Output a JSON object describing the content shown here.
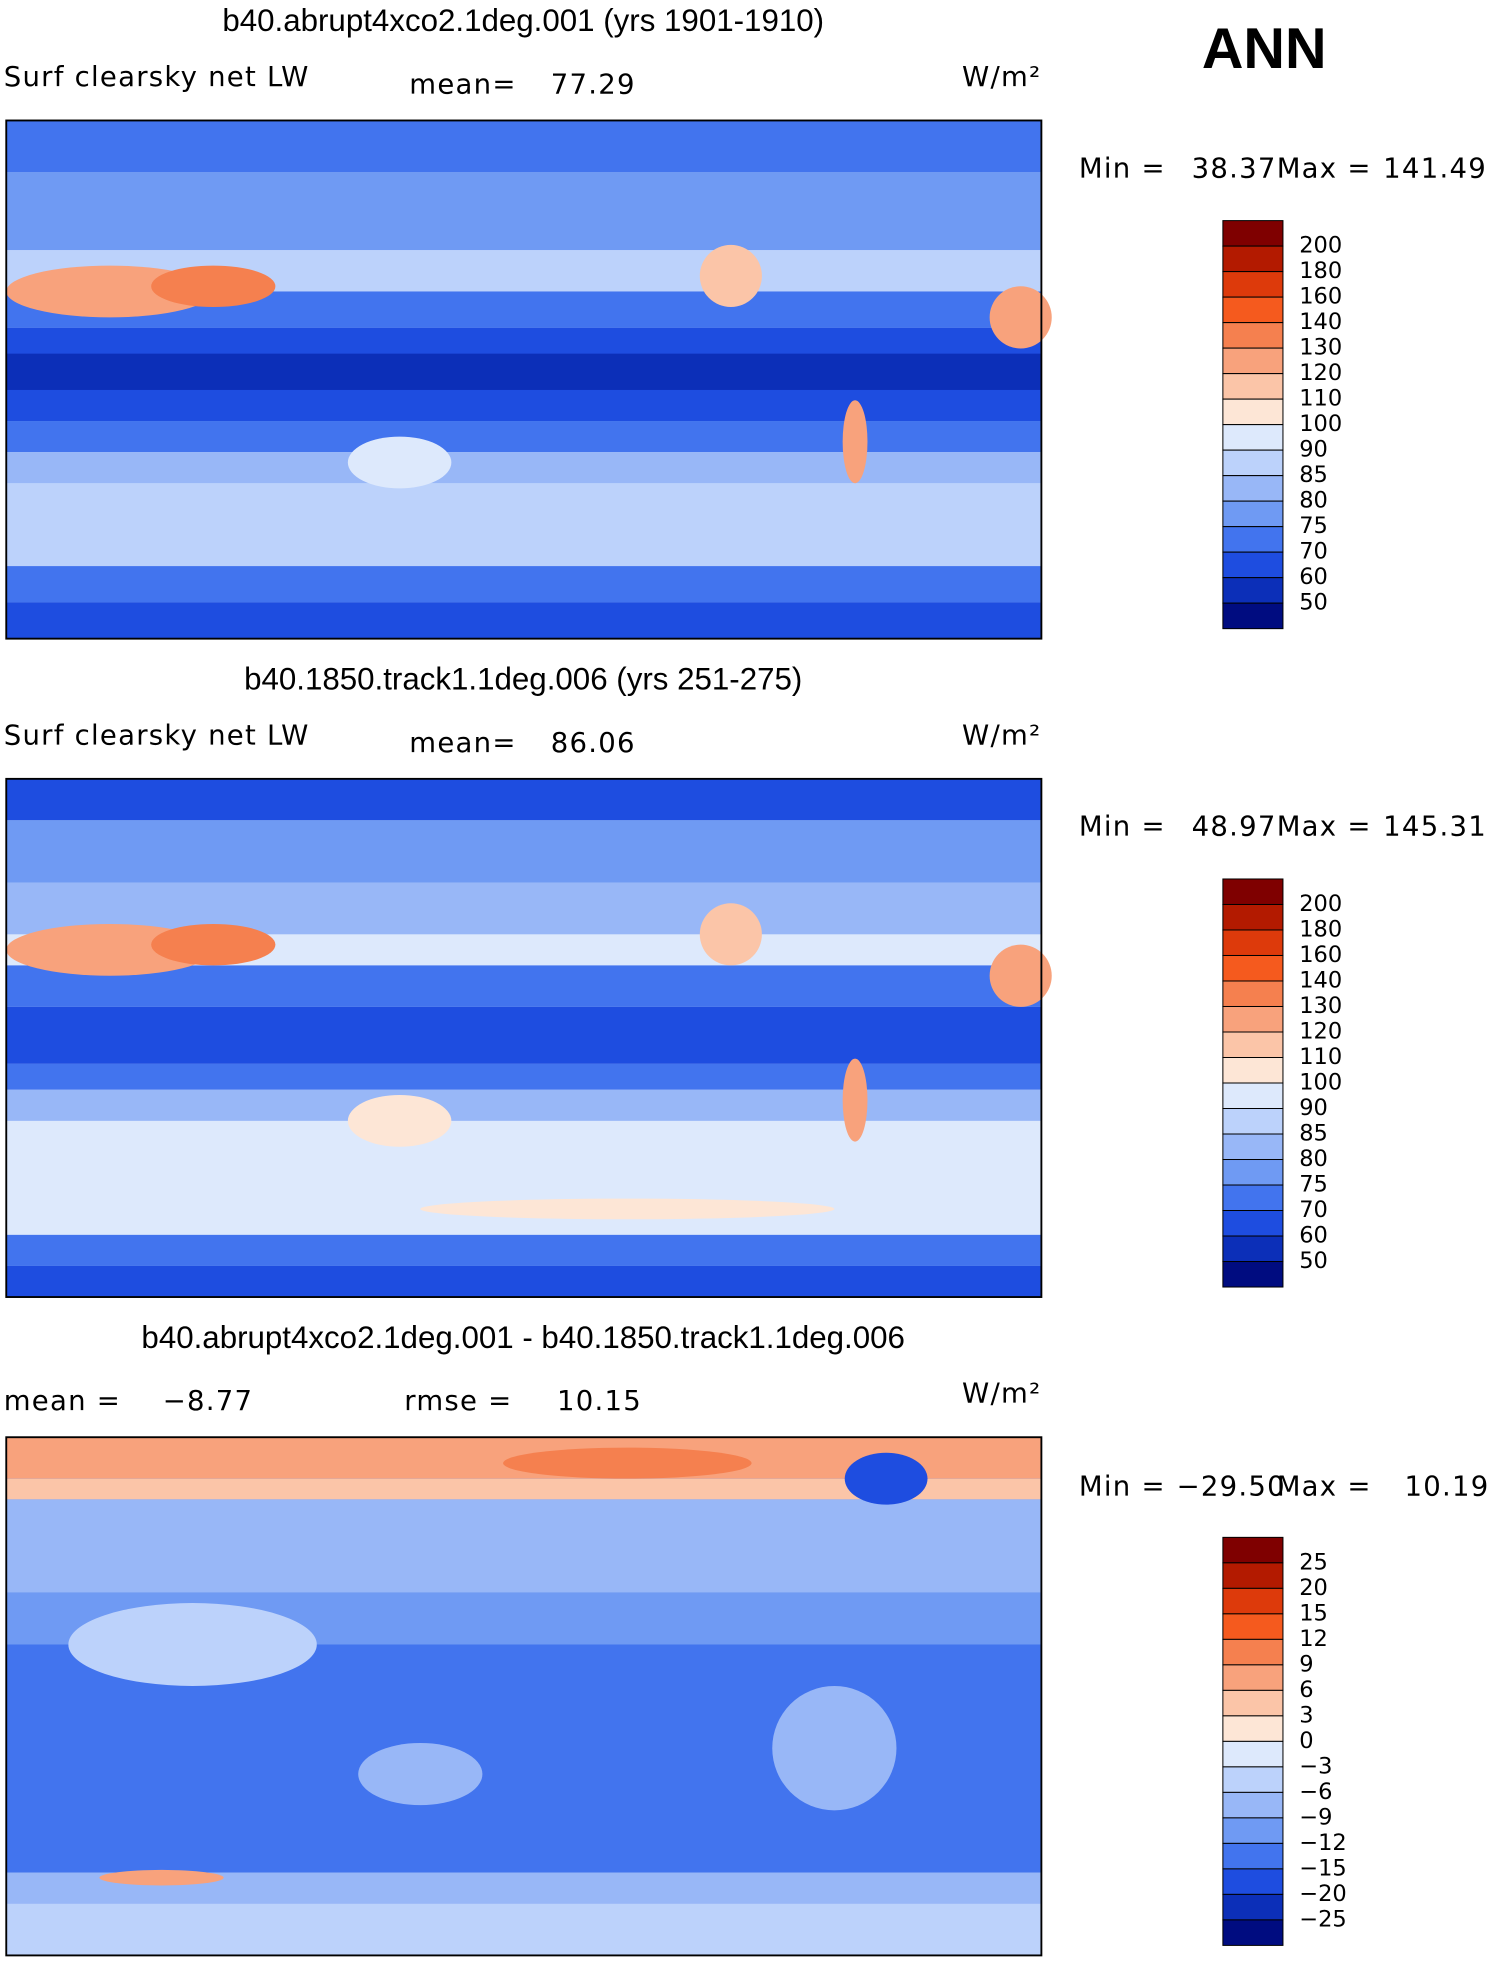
{
  "season": "ANN",
  "panels": [
    {
      "title": "b40.abrupt4xco2.1deg.001 (yrs 1901-1910)",
      "variable": "Surf clearsky net LW",
      "mean_label": "mean=",
      "mean": 77.29,
      "units": "W/m²",
      "min_label": "Min =",
      "min": 38.37,
      "max_label": "Max =",
      "max": 141.49,
      "colorbar": {
        "labels": [
          200,
          180,
          160,
          140,
          130,
          120,
          110,
          100,
          90,
          85,
          80,
          75,
          70,
          60,
          50
        ],
        "colors": [
          "#7f0000",
          "#b31a00",
          "#dd3a0b",
          "#f55a1e",
          "#f5804f",
          "#f8a27c",
          "#fbc5a8",
          "#fde6d6",
          "#dde9fc",
          "#bcd2fb",
          "#98b7f7",
          "#6f9af3",
          "#4274ee",
          "#1e4de0",
          "#0c2fb8",
          "#000c80"
        ]
      }
    },
    {
      "title": "b40.1850.track1.1deg.006 (yrs 251-275)",
      "variable": "Surf clearsky net LW",
      "mean_label": "mean=",
      "mean": 86.06,
      "units": "W/m²",
      "min_label": "Min =",
      "min": 48.97,
      "max_label": "Max =",
      "max": 145.31,
      "colorbar": {
        "labels": [
          200,
          180,
          160,
          140,
          130,
          120,
          110,
          100,
          90,
          85,
          80,
          75,
          70,
          60,
          50
        ],
        "colors": [
          "#7f0000",
          "#b31a00",
          "#dd3a0b",
          "#f55a1e",
          "#f5804f",
          "#f8a27c",
          "#fbc5a8",
          "#fde6d6",
          "#dde9fc",
          "#bcd2fb",
          "#98b7f7",
          "#6f9af3",
          "#4274ee",
          "#1e4de0",
          "#0c2fb8",
          "#000c80"
        ]
      }
    },
    {
      "title": "b40.abrupt4xco2.1deg.001 - b40.1850.track1.1deg.006",
      "mean_label": "mean =",
      "mean": "−8.77",
      "rmse_label": "rmse =",
      "rmse": 10.15,
      "units": "W/m²",
      "min_label": "Min =",
      "min": "−29.50",
      "max_label": "Max =",
      "max": 10.19,
      "colorbar": {
        "labels": [
          25,
          20,
          15,
          12,
          9,
          6,
          3,
          0,
          "−3",
          "−6",
          "−9",
          "−12",
          "−15",
          "−20",
          "−25"
        ],
        "colors": [
          "#7f0000",
          "#b31a00",
          "#dd3a0b",
          "#f55a1e",
          "#f5804f",
          "#f8a27c",
          "#fbc5a8",
          "#fde6d6",
          "#dde9fc",
          "#bcd2fb",
          "#98b7f7",
          "#6f9af3",
          "#4274ee",
          "#1e4de0",
          "#0c2fb8",
          "#000c80"
        ]
      }
    }
  ]
}
